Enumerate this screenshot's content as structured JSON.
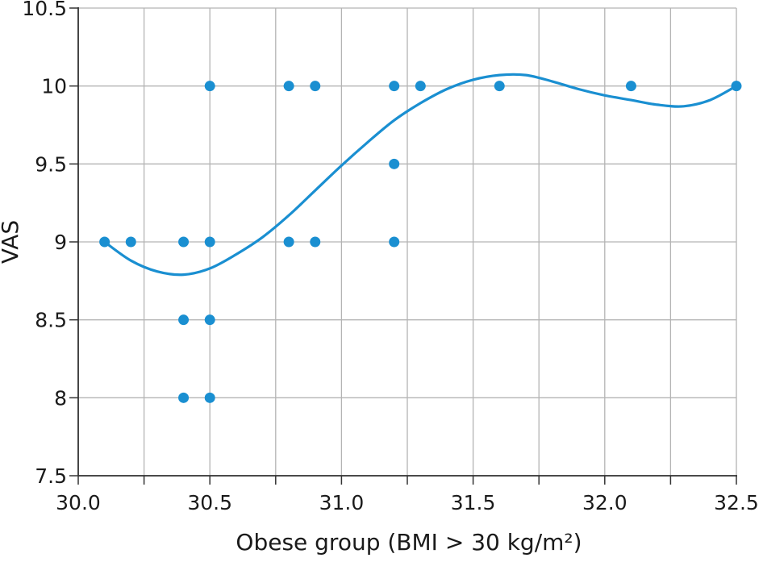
{
  "chart_data": {
    "type": "scatter",
    "title": "",
    "xlabel": "Obese group (BMI > 30 kg/m²)",
    "ylabel": "VAS",
    "xlim": [
      30.0,
      32.5
    ],
    "ylim": [
      7.5,
      10.5
    ],
    "x_ticks": [
      "30.0",
      "30.5",
      "31.0",
      "31.5",
      "32.0",
      "32.5"
    ],
    "x_tick_values": [
      30.0,
      30.5,
      31.0,
      31.5,
      32.0,
      32.5
    ],
    "y_ticks": [
      "7.5",
      "8",
      "8.5",
      "9",
      "9.5",
      "10",
      "10.5"
    ],
    "y_tick_values": [
      7.5,
      8,
      8.5,
      9,
      9.5,
      10,
      10.5
    ],
    "x_grid_values": [
      30.0,
      30.25,
      30.5,
      30.75,
      31.0,
      31.25,
      31.5,
      31.75,
      32.0,
      32.25,
      32.5
    ],
    "grid": true,
    "legend": "none",
    "colors": {
      "points": "#1a8fd1",
      "curve": "#1a8fd1",
      "grid": "#b4b4b4",
      "axes": "#333333"
    },
    "points": [
      {
        "x": 30.1,
        "y": 9
      },
      {
        "x": 30.2,
        "y": 9
      },
      {
        "x": 30.4,
        "y": 9
      },
      {
        "x": 30.4,
        "y": 8.5
      },
      {
        "x": 30.4,
        "y": 8
      },
      {
        "x": 30.5,
        "y": 10
      },
      {
        "x": 30.5,
        "y": 9
      },
      {
        "x": 30.5,
        "y": 8.5
      },
      {
        "x": 30.5,
        "y": 8
      },
      {
        "x": 30.8,
        "y": 10
      },
      {
        "x": 30.8,
        "y": 9
      },
      {
        "x": 30.9,
        "y": 10
      },
      {
        "x": 30.9,
        "y": 9
      },
      {
        "x": 31.2,
        "y": 10
      },
      {
        "x": 31.2,
        "y": 9.5
      },
      {
        "x": 31.2,
        "y": 9
      },
      {
        "x": 31.3,
        "y": 10
      },
      {
        "x": 31.6,
        "y": 10
      },
      {
        "x": 32.1,
        "y": 10
      },
      {
        "x": 32.5,
        "y": 10
      }
    ],
    "trend_curve": {
      "x": [
        30.1,
        30.2,
        30.3,
        30.4,
        30.5,
        30.6,
        30.7,
        30.8,
        30.9,
        31.0,
        31.1,
        31.2,
        31.3,
        31.4,
        31.5,
        31.6,
        31.7,
        31.8,
        31.9,
        32.0,
        32.1,
        32.2,
        32.3,
        32.4,
        32.5
      ],
      "y": [
        9.0,
        8.88,
        8.81,
        8.79,
        8.83,
        8.92,
        9.03,
        9.17,
        9.33,
        9.49,
        9.64,
        9.78,
        9.89,
        9.98,
        10.04,
        10.07,
        10.07,
        10.03,
        9.98,
        9.94,
        9.91,
        9.88,
        9.87,
        9.91,
        10.0
      ]
    }
  }
}
